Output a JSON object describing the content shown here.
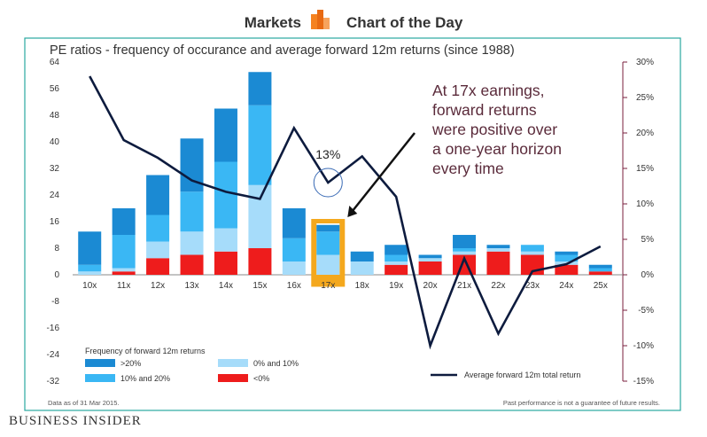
{
  "header": {
    "left": "Markets",
    "right": "Chart of the Day"
  },
  "colors": {
    "band_gt20": "#1b8ad3",
    "band_10_20": "#3ab7f4",
    "band_0_10": "#a6dcfa",
    "band_lt0": "#ee1c1c",
    "line": "#0d1b3e",
    "right_axis": "#7a1f3d",
    "highlight": "#f4a81d",
    "border": "#2aa8a0"
  },
  "chart_data": {
    "type": "bar",
    "title": "PE ratios - frequency of occurance and average forward 12m returns (since 1988)",
    "categories": [
      "10x",
      "11x",
      "12x",
      "13x",
      "14x",
      "15x",
      "16x",
      "17x",
      "18x",
      "19x",
      "20x",
      "21x",
      "22x",
      "23x",
      "24x",
      "25x"
    ],
    "stacked": true,
    "series": [
      {
        "name": "<0%",
        "values": [
          0,
          1,
          5,
          6,
          7,
          8,
          0,
          0,
          0,
          3,
          4,
          6,
          7,
          6,
          3,
          1
        ]
      },
      {
        "name": "0% and 10%",
        "values": [
          1,
          1,
          5,
          7,
          7,
          19,
          4,
          6,
          4,
          1,
          1,
          1,
          1,
          1,
          1,
          0
        ]
      },
      {
        "name": "10% and 20%",
        "values": [
          2,
          10,
          8,
          12,
          20,
          24,
          7,
          7,
          0,
          2,
          0,
          1,
          0,
          2,
          2,
          1
        ]
      },
      {
        "name": ">20%",
        "values": [
          10,
          8,
          12,
          16,
          16,
          10,
          9,
          2,
          3,
          3,
          1,
          4,
          1,
          0,
          1,
          1
        ]
      }
    ],
    "line_series": {
      "name": "Average forward 12m total return",
      "axis": "right",
      "values": [
        28,
        19,
        16.5,
        13.3,
        11.7,
        10.7,
        20.7,
        13,
        16.7,
        11,
        -10,
        2.3,
        -8.3,
        0.5,
        1.5,
        4
      ]
    },
    "yticks_left": [
      "64",
      "56",
      "48",
      "40",
      "32",
      "24",
      "16",
      "8",
      "0",
      "-8",
      "-16",
      "-24",
      "-32"
    ],
    "yticks_right": [
      "30%",
      "25%",
      "20%",
      "15%",
      "10%",
      "5%",
      "0%",
      "-5%",
      "-10%",
      "-15%"
    ],
    "ylim_left": [
      -32,
      64
    ],
    "ylim_right": [
      -15,
      30
    ],
    "highlight_category": "17x",
    "annotation_value": "13%",
    "annotation_text": [
      "At 17x earnings,",
      "forward returns",
      "were positive over",
      "a one-year horizon",
      "every time"
    ],
    "legend_title": "Frequency of forward 12m returns",
    "legend": [
      ">20%",
      "10% and 20%",
      "0% and 10%",
      "<0%"
    ],
    "line_legend": "Average forward 12m total return",
    "footnote_left": "Data as of 31 Mar 2015.",
    "footnote_right": "Past performance is not a guarantee of future results."
  },
  "footer": {
    "brand": "BUSINESS INSIDER"
  }
}
